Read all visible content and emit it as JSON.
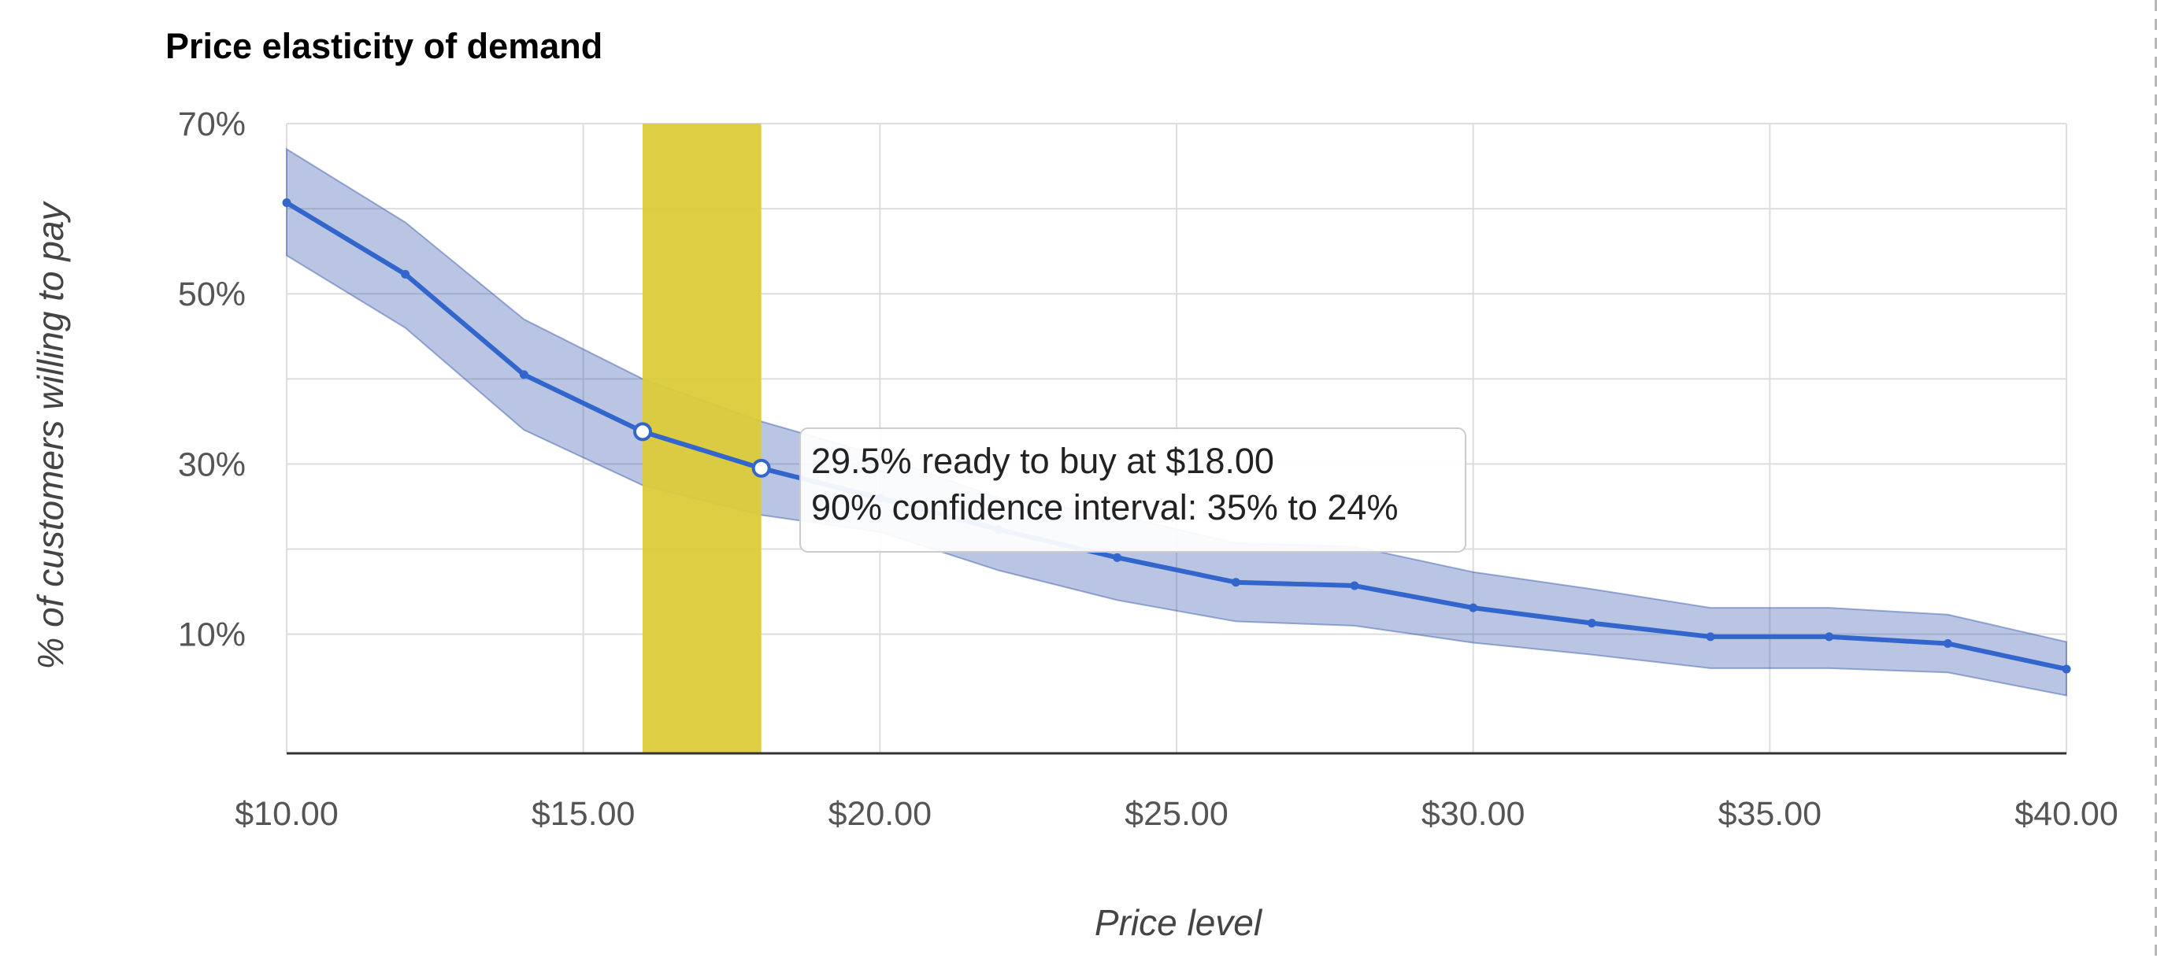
{
  "chart_data": {
    "type": "line",
    "title": "Price elasticity of demand",
    "xlabel": "Price level",
    "ylabel": "% of customers willing to pay",
    "xlim": [
      10,
      40
    ],
    "ylim": [
      -4,
      70
    ],
    "x_ticks": [
      10,
      15,
      20,
      25,
      30,
      35,
      40
    ],
    "x_tick_labels": [
      "$10.00",
      "$15.00",
      "$20.00",
      "$25.00",
      "$30.00",
      "$35.00",
      "$40.00"
    ],
    "y_ticks": [
      10,
      30,
      50,
      70
    ],
    "y_tick_labels": [
      "10%",
      "30%",
      "50%",
      "70%"
    ],
    "y_minor_gridlines": [
      20,
      40,
      60
    ],
    "grid": true,
    "legend": "none",
    "x": [
      10,
      12,
      14,
      16,
      18,
      20,
      22,
      24,
      26,
      28,
      30,
      32,
      34,
      36,
      38,
      40
    ],
    "series": [
      {
        "values": [
          60.7,
          52.3,
          40.5,
          33.8,
          29.5,
          26.0,
          22.3,
          19.0,
          16.1,
          15.7,
          13.1,
          11.3,
          9.7,
          9.7,
          8.9,
          5.9
        ],
        "lower": [
          54.5,
          46.0,
          34.0,
          27.5,
          24.0,
          22.0,
          17.5,
          14.0,
          11.5,
          11.0,
          9.0,
          7.6,
          6.0,
          6.0,
          5.5,
          2.8
        ],
        "upper": [
          67.0,
          58.4,
          47.0,
          40.0,
          35.0,
          31.0,
          26.0,
          24.0,
          20.7,
          20.3,
          17.3,
          15.3,
          13.1,
          13.1,
          12.3,
          9.1
        ]
      }
    ],
    "highlight_band": {
      "x_start": 16,
      "x_end": 18
    },
    "highlighted_points": [
      16,
      18
    ],
    "tooltip": {
      "line1": "29.5% ready to buy at $18.00",
      "line2": "90% confidence interval: 35% to 24%"
    }
  },
  "colors": {
    "line": "#3366CC",
    "band_fill": "#3355AA",
    "highlight": "#DBCB3A",
    "gridline": "#DDDDDD",
    "baseline": "#333333"
  }
}
